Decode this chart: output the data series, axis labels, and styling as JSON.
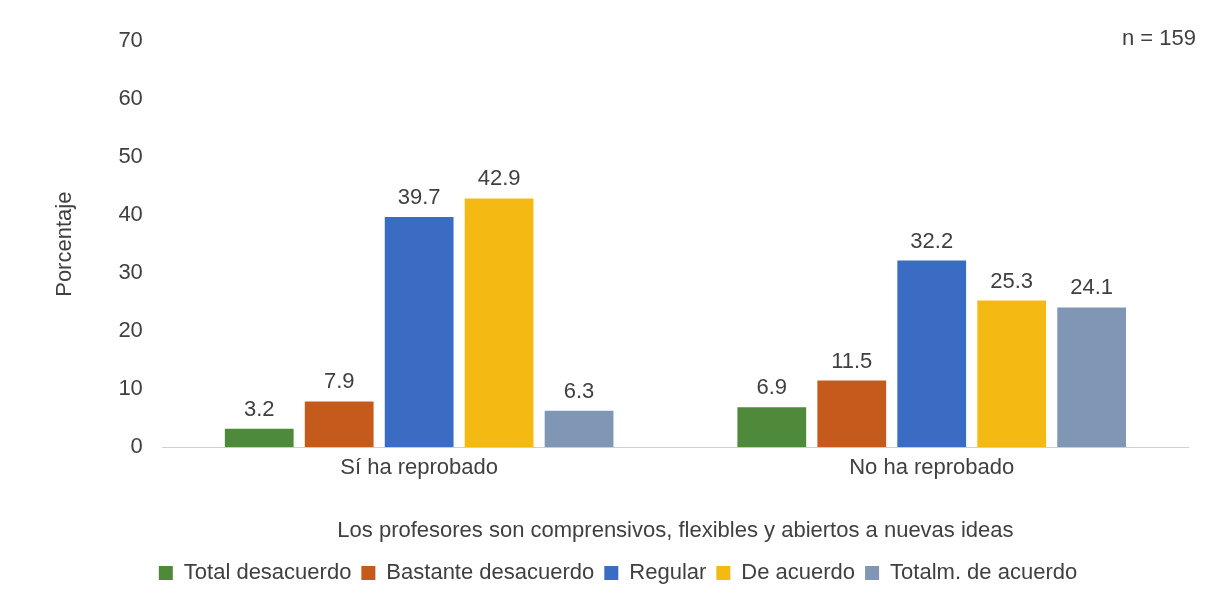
{
  "chart_data": {
    "type": "bar",
    "categories": [
      "Sí ha reprobado",
      "No ha reprobado"
    ],
    "series": [
      {
        "name": "Total desacuerdo",
        "color": "#4e8a3a",
        "values": [
          3.2,
          6.9
        ]
      },
      {
        "name": "Bastante desacuerdo",
        "color": "#c55a1d",
        "values": [
          7.9,
          11.5
        ]
      },
      {
        "name": "Regular",
        "color": "#3a6cc4",
        "values": [
          39.7,
          32.2
        ]
      },
      {
        "name": "De acuerdo",
        "color": "#f5b914",
        "values": [
          42.9,
          25.3
        ]
      },
      {
        "name": "Totalm. de acuerdo",
        "color": "#7f97b5",
        "values": [
          6.3,
          24.1
        ]
      }
    ],
    "ylabel": "Porcentaje",
    "xlabel": "Los profesores son comprensivos, flexibles y abiertos a nuevas ideas",
    "ylim": [
      0,
      70
    ],
    "yticks": [
      0,
      10,
      20,
      30,
      40,
      50,
      60,
      70
    ],
    "grid": false,
    "legend": "bottom",
    "data_labels": true,
    "annotations": [
      "n = 159"
    ]
  }
}
